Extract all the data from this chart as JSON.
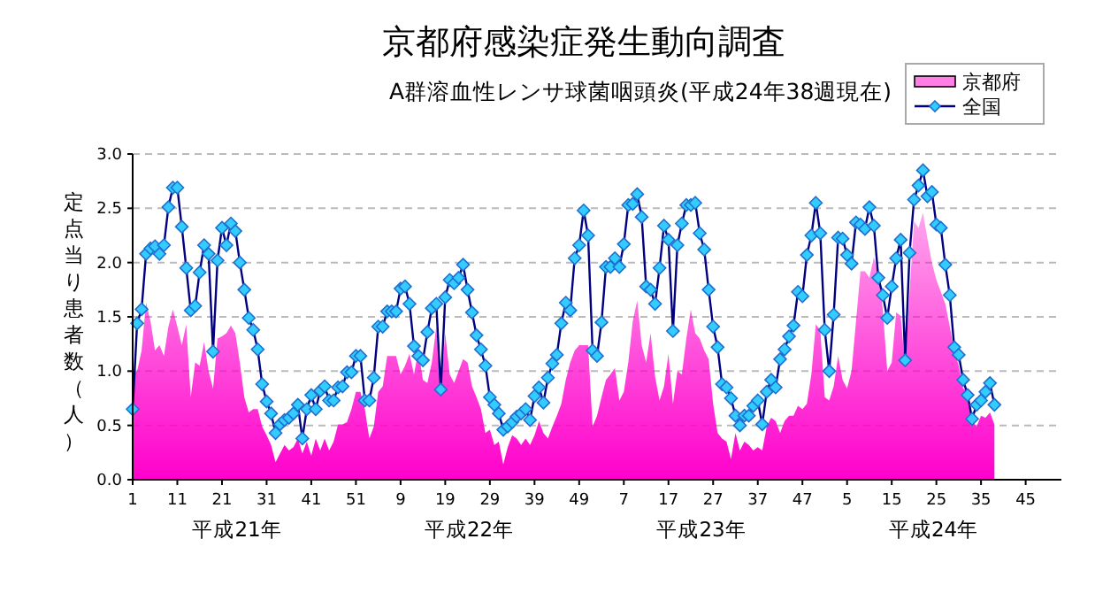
{
  "chart_data": {
    "type": "line",
    "title": "京都府感染症発生動向調査",
    "subtitle": "A群溶血性レンサ球菌咽頭炎(平成24年38週現在)",
    "ylabel": "定点当り患者数（人）",
    "categories": [
      "1",
      null,
      null,
      null,
      null,
      null,
      null,
      null,
      null,
      null,
      "11",
      null,
      null,
      null,
      null,
      null,
      null,
      null,
      null,
      null,
      "21",
      null,
      null,
      null,
      null,
      null,
      null,
      null,
      null,
      null,
      "31",
      null,
      null,
      null,
      null,
      null,
      null,
      null,
      null,
      null,
      "41",
      null,
      null,
      null,
      null,
      null,
      null,
      null,
      null,
      null,
      "51",
      null,
      null,
      null,
      null,
      null,
      null,
      null,
      null,
      null,
      "9",
      null,
      null,
      null,
      null,
      null,
      null,
      null,
      null,
      null,
      "19",
      null,
      null,
      null,
      null,
      null,
      null,
      null,
      null,
      null,
      "29",
      null,
      null,
      null,
      null,
      null,
      null,
      null,
      null,
      null,
      "39",
      null,
      null,
      null,
      null,
      null,
      null,
      null,
      null,
      null,
      "49",
      null,
      null,
      null,
      null,
      null,
      null,
      null,
      null,
      null,
      "7",
      null,
      null,
      null,
      null,
      null,
      null,
      null,
      null,
      null,
      "17",
      null,
      null,
      null,
      null,
      null,
      null,
      null,
      null,
      null,
      "27",
      null,
      null,
      null,
      null,
      null,
      null,
      null,
      null,
      null,
      "37",
      null,
      null,
      null,
      null,
      null,
      null,
      null,
      null,
      null,
      "47",
      null,
      null,
      null,
      null,
      null,
      null,
      null,
      null,
      null,
      "5",
      null,
      null,
      null,
      null,
      null,
      null,
      null,
      null,
      null,
      "15",
      null,
      null,
      null,
      null,
      null,
      null,
      null,
      null,
      null,
      "25",
      null,
      null,
      null,
      null,
      null,
      null,
      null,
      null,
      null,
      "35",
      null,
      null,
      null,
      null,
      null,
      null,
      null,
      null,
      null,
      "45",
      null,
      null,
      null,
      null,
      null,
      null,
      null
    ],
    "series": [
      {
        "name": "京都府",
        "type": "area",
        "color": "#ff00cc",
        "values": [
          0.97,
          1.0,
          1.19,
          1.63,
          1.46,
          1.19,
          1.24,
          1.14,
          1.41,
          1.57,
          1.41,
          1.24,
          1.43,
          0.76,
          1.08,
          1.05,
          1.27,
          1.0,
          0.84,
          1.3,
          1.32,
          1.35,
          1.42,
          1.35,
          1.08,
          0.76,
          0.62,
          0.65,
          0.65,
          0.49,
          0.41,
          0.32,
          0.16,
          0.24,
          0.32,
          0.27,
          0.3,
          0.38,
          0.24,
          0.35,
          0.22,
          0.38,
          0.27,
          0.38,
          0.27,
          0.35,
          0.51,
          0.51,
          0.53,
          0.65,
          0.81,
          0.81,
          0.65,
          0.38,
          0.49,
          0.81,
          0.86,
          1.14,
          1.14,
          1.14,
          0.97,
          1.05,
          1.16,
          0.97,
          1.19,
          0.92,
          0.89,
          1.08,
          1.41,
          0.81,
          1.35,
          0.97,
          0.89,
          1.0,
          1.11,
          1.08,
          0.86,
          0.76,
          0.65,
          0.43,
          0.46,
          0.32,
          0.35,
          0.14,
          0.3,
          0.41,
          0.38,
          0.32,
          0.38,
          0.32,
          0.41,
          0.54,
          0.43,
          0.38,
          0.49,
          0.59,
          0.7,
          0.92,
          1.08,
          1.19,
          1.24,
          1.24,
          1.24,
          0.49,
          0.59,
          0.76,
          0.92,
          0.97,
          1.03,
          0.73,
          0.81,
          1.08,
          1.46,
          1.65,
          1.24,
          1.08,
          1.35,
          0.95,
          0.73,
          0.86,
          1.16,
          0.7,
          1.0,
          0.97,
          1.3,
          1.57,
          1.35,
          1.3,
          1.19,
          1.11,
          0.7,
          0.43,
          0.38,
          0.35,
          0.19,
          0.43,
          0.27,
          0.35,
          0.32,
          0.27,
          0.3,
          0.27,
          0.49,
          0.57,
          0.54,
          0.43,
          0.54,
          0.59,
          0.59,
          0.68,
          0.65,
          0.7,
          0.97,
          1.43,
          1.38,
          0.76,
          0.73,
          0.86,
          1.14,
          0.92,
          0.84,
          1.0,
          1.46,
          1.92,
          1.92,
          1.86,
          2.05,
          1.89,
          1.57,
          1.0,
          1.08,
          1.54,
          1.51,
          1.03,
          1.73,
          2.38,
          2.32,
          2.46,
          2.22,
          2.0,
          1.84,
          1.73,
          1.62,
          1.41,
          1.19,
          1.05,
          0.84,
          0.81,
          0.54,
          0.49,
          0.59,
          0.57,
          0.62,
          0.51,
          null,
          null,
          null,
          null,
          null,
          null,
          null,
          null,
          null,
          null,
          null,
          null,
          null,
          null
        ]
      },
      {
        "name": "全国",
        "color": "#000080",
        "marker": "diamond",
        "values": [
          0.65,
          1.44,
          1.57,
          2.08,
          2.13,
          2.15,
          2.08,
          2.16,
          2.51,
          2.69,
          2.69,
          2.33,
          1.95,
          1.56,
          1.6,
          1.91,
          2.16,
          2.08,
          1.18,
          2.02,
          2.32,
          2.16,
          2.36,
          2.29,
          2.0,
          1.75,
          1.49,
          1.38,
          1.2,
          0.88,
          0.72,
          0.61,
          0.43,
          0.51,
          0.55,
          0.57,
          0.61,
          0.69,
          0.38,
          0.65,
          0.78,
          0.65,
          0.82,
          0.86,
          0.73,
          0.73,
          0.85,
          0.86,
          0.99,
          0.99,
          1.14,
          1.14,
          0.73,
          0.73,
          0.94,
          1.41,
          1.41,
          1.55,
          1.55,
          1.55,
          1.76,
          1.78,
          1.62,
          1.23,
          1.14,
          1.1,
          1.36,
          1.58,
          1.62,
          0.83,
          1.68,
          1.84,
          1.81,
          1.86,
          1.98,
          1.75,
          1.54,
          1.33,
          1.2,
          1.05,
          0.76,
          0.69,
          0.61,
          0.46,
          0.49,
          0.53,
          0.58,
          0.61,
          0.65,
          0.55,
          0.77,
          0.85,
          0.71,
          0.94,
          1.07,
          1.15,
          1.44,
          1.63,
          1.56,
          2.04,
          2.16,
          2.48,
          2.25,
          1.19,
          1.14,
          1.45,
          1.96,
          1.96,
          2.04,
          1.96,
          2.17,
          2.53,
          2.54,
          2.63,
          2.42,
          1.78,
          1.75,
          1.62,
          1.95,
          2.34,
          2.21,
          1.37,
          2.16,
          2.36,
          2.53,
          2.53,
          2.55,
          2.27,
          2.12,
          1.75,
          1.41,
          1.22,
          0.88,
          0.85,
          0.75,
          0.59,
          0.5,
          0.59,
          0.59,
          0.68,
          0.73,
          0.51,
          0.81,
          0.92,
          0.85,
          1.11,
          1.2,
          1.32,
          1.42,
          1.73,
          1.69,
          2.07,
          2.25,
          2.55,
          2.27,
          1.38,
          1.0,
          1.52,
          2.23,
          2.22,
          2.07,
          1.99,
          2.37,
          2.35,
          2.31,
          2.51,
          2.34,
          1.86,
          1.7,
          1.49,
          1.78,
          2.04,
          2.21,
          1.1,
          2.09,
          2.58,
          2.71,
          2.85,
          2.61,
          2.65,
          2.35,
          2.32,
          1.98,
          1.7,
          1.22,
          1.15,
          0.92,
          0.78,
          0.56,
          0.69,
          0.73,
          0.81,
          0.89,
          0.69,
          null,
          null,
          null,
          null,
          null,
          null,
          null,
          null,
          null,
          null,
          null,
          null,
          null,
          null
        ]
      }
    ],
    "ylim": [
      0,
      3
    ],
    "yticks": [
      {
        "value": 0,
        "label": "0.0"
      },
      {
        "value": 0.5,
        "label": "0.5"
      },
      {
        "value": 1,
        "label": "1.0"
      },
      {
        "value": 1.5,
        "label": "1.5"
      },
      {
        "value": 2,
        "label": "2.0"
      },
      {
        "value": 2.5,
        "label": "2.5"
      },
      {
        "value": 3,
        "label": "3.0"
      }
    ],
    "grid": "y",
    "legend": "top right",
    "annotations": [
      "平成21年",
      "平成22年",
      "平成23年",
      "平成24年"
    ]
  }
}
